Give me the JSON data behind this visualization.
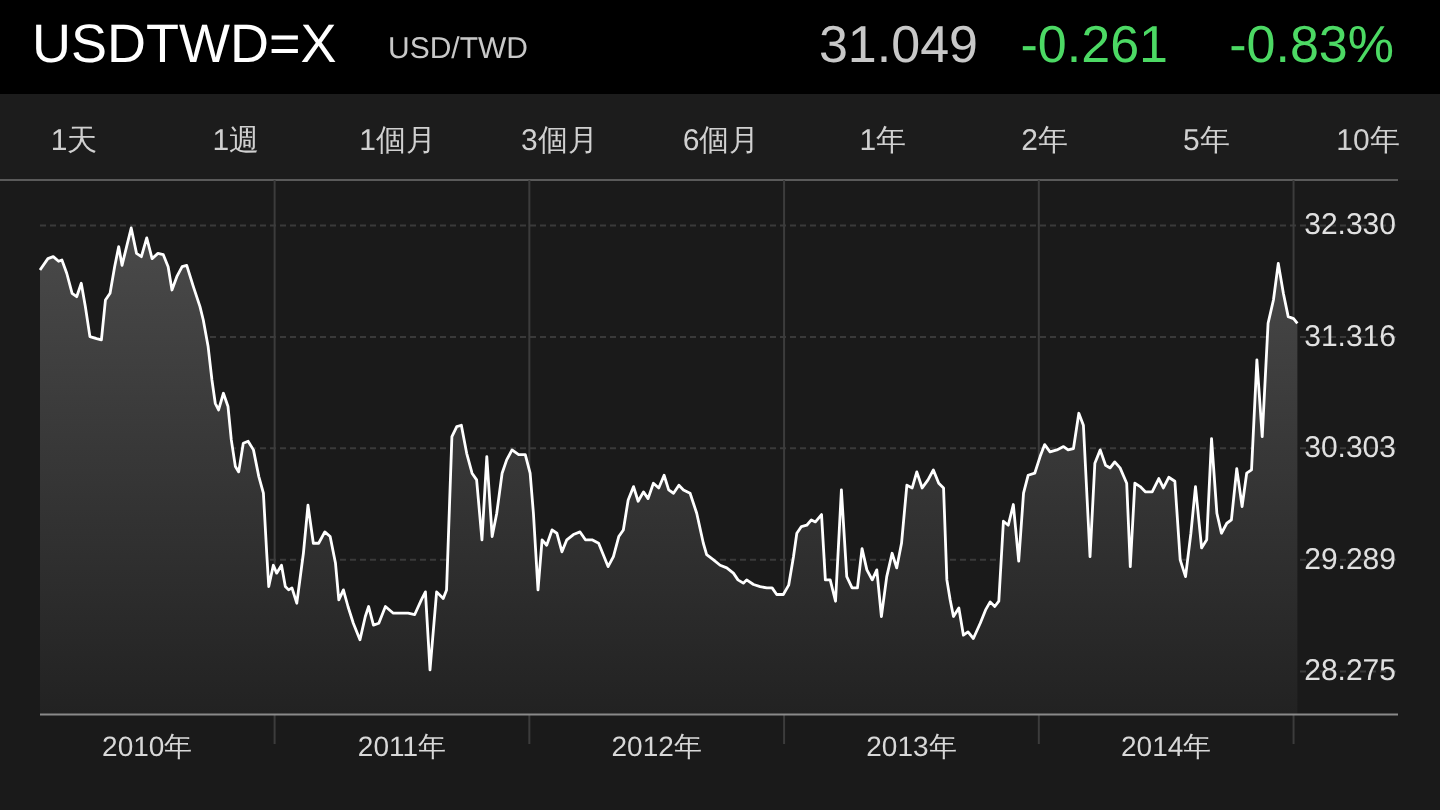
{
  "chart_data": {
    "type": "area",
    "title": "USDTWD=X",
    "subtitle": "USD/TWD",
    "annotations": [
      "31.049",
      "-0.261",
      "-0.83%",
      "1天",
      "1週",
      "1個月",
      "3個月",
      "6個月",
      "1年",
      "2年",
      "5年",
      "10年"
    ],
    "x": [
      2010.079,
      2010.11,
      2010.131,
      2010.152,
      2010.165,
      2010.184,
      2010.205,
      2010.223,
      2010.241,
      2010.257,
      2010.275,
      2010.301,
      2010.32,
      2010.336,
      2010.354,
      2010.372,
      2010.388,
      2010.401,
      2010.419,
      2010.437,
      2010.458,
      2010.477,
      2010.498,
      2010.519,
      2010.542,
      2010.563,
      2010.582,
      2010.597,
      2010.616,
      2010.637,
      2010.655,
      2010.681,
      2010.707,
      2010.72,
      2010.739,
      2010.754,
      2010.767,
      2010.78,
      2010.799,
      2010.817,
      2010.83,
      2010.846,
      2010.859,
      2010.877,
      2010.896,
      2010.917,
      2010.938,
      2010.956,
      2010.969,
      2010.977,
      2010.995,
      2011.008,
      2011.027,
      2011.042,
      2011.055,
      2011.068,
      2011.087,
      2011.113,
      2011.131,
      2011.152,
      2011.173,
      2011.197,
      2011.218,
      2011.239,
      2011.252,
      2011.27,
      2011.288,
      2011.309,
      2011.335,
      2011.356,
      2011.369,
      2011.388,
      2011.409,
      2011.435,
      2011.466,
      2011.492,
      2011.524,
      2011.55,
      2011.576,
      2011.592,
      2011.61,
      2011.636,
      2011.662,
      2011.675,
      2011.696,
      2011.715,
      2011.733,
      2011.754,
      2011.775,
      2011.793,
      2011.814,
      2011.833,
      2011.854,
      2011.872,
      2011.893,
      2011.911,
      2011.932,
      2011.958,
      2011.984,
      2012.003,
      2012.016,
      2012.034,
      2012.05,
      2012.068,
      2012.089,
      2012.108,
      2012.128,
      2012.147,
      2012.173,
      2012.199,
      2012.22,
      2012.246,
      2012.272,
      2012.309,
      2012.33,
      2012.351,
      2012.369,
      2012.388,
      2012.409,
      2012.427,
      2012.448,
      2012.466,
      2012.487,
      2012.508,
      2012.529,
      2012.547,
      2012.566,
      2012.587,
      2012.605,
      2012.631,
      2012.657,
      2012.683,
      2012.696,
      2012.723,
      2012.749,
      2012.775,
      2012.801,
      2012.819,
      2012.84,
      2012.853,
      2012.88,
      2012.906,
      2012.932,
      2012.953,
      2012.971,
      2012.997,
      2013.018,
      2013.037,
      2013.05,
      2013.068,
      2013.089,
      2013.107,
      2013.123,
      2013.147,
      2013.162,
      2013.181,
      2013.202,
      2013.225,
      2013.246,
      2013.267,
      2013.288,
      2013.306,
      2013.325,
      2013.346,
      2013.364,
      2013.382,
      2013.403,
      2013.424,
      2013.442,
      2013.461,
      2013.482,
      2013.503,
      2013.521,
      2013.542,
      2013.565,
      2013.586,
      2013.607,
      2013.626,
      2013.639,
      2013.652,
      2013.665,
      2013.686,
      2013.704,
      2013.722,
      2013.743,
      2013.77,
      2013.791,
      2013.809,
      2013.827,
      2013.843,
      2013.861,
      2013.88,
      2013.9,
      2013.921,
      2013.94,
      2013.958,
      2013.984,
      2014.005,
      2014.023,
      2014.044,
      2014.071,
      2014.097,
      2014.115,
      2014.136,
      2014.157,
      2014.175,
      2014.201,
      2014.22,
      2014.241,
      2014.262,
      2014.28,
      2014.298,
      2014.319,
      2014.345,
      2014.359,
      2014.377,
      2014.398,
      2014.419,
      2014.445,
      2014.471,
      2014.489,
      2014.51,
      2014.534,
      2014.555,
      2014.576,
      2014.597,
      2014.615,
      2014.639,
      2014.659,
      2014.678,
      2014.699,
      2014.717,
      2014.738,
      2014.756,
      2014.777,
      2014.798,
      2014.816,
      2014.835,
      2014.856,
      2014.877,
      2014.9,
      2014.921,
      2014.94,
      2014.96,
      2014.979,
      2015.0,
      2015.015
    ],
    "values": [
      31.925,
      32.028,
      32.046,
      32.004,
      32.016,
      31.895,
      31.713,
      31.682,
      31.804,
      31.592,
      31.319,
      31.301,
      31.289,
      31.652,
      31.713,
      31.955,
      32.137,
      31.967,
      32.137,
      32.307,
      32.076,
      32.046,
      32.216,
      32.028,
      32.076,
      32.064,
      31.955,
      31.743,
      31.864,
      31.955,
      31.967,
      31.773,
      31.592,
      31.47,
      31.228,
      30.925,
      30.713,
      30.652,
      30.804,
      30.683,
      30.38,
      30.137,
      30.089,
      30.349,
      30.367,
      30.289,
      30.046,
      29.895,
      29.349,
      29.046,
      29.24,
      29.168,
      29.24,
      29.046,
      29.016,
      29.034,
      28.895,
      29.349,
      29.786,
      29.44,
      29.44,
      29.543,
      29.501,
      29.258,
      28.925,
      29.016,
      28.865,
      28.713,
      28.562,
      28.774,
      28.865,
      28.695,
      28.713,
      28.865,
      28.804,
      28.804,
      28.804,
      28.792,
      28.925,
      28.998,
      28.289,
      28.998,
      28.937,
      29.016,
      30.41,
      30.501,
      30.513,
      30.258,
      30.077,
      30.016,
      29.471,
      30.228,
      29.501,
      29.713,
      30.077,
      30.198,
      30.289,
      30.246,
      30.246,
      30.077,
      29.713,
      29.016,
      29.471,
      29.422,
      29.561,
      29.531,
      29.362,
      29.471,
      29.519,
      29.543,
      29.471,
      29.471,
      29.44,
      29.228,
      29.319,
      29.501,
      29.561,
      29.834,
      29.955,
      29.822,
      29.907,
      29.846,
      29.986,
      29.943,
      30.058,
      29.925,
      29.895,
      29.968,
      29.925,
      29.895,
      29.713,
      29.44,
      29.337,
      29.289,
      29.24,
      29.216,
      29.168,
      29.107,
      29.077,
      29.107,
      29.065,
      29.046,
      29.034,
      29.034,
      28.974,
      28.974,
      29.059,
      29.319,
      29.531,
      29.592,
      29.604,
      29.652,
      29.634,
      29.701,
      29.107,
      29.107,
      28.913,
      29.925,
      29.137,
      29.034,
      29.034,
      29.392,
      29.198,
      29.107,
      29.198,
      28.774,
      29.137,
      29.349,
      29.216,
      29.44,
      29.968,
      29.943,
      30.089,
      29.943,
      30.016,
      30.107,
      29.986,
      29.943,
      29.107,
      28.925,
      28.774,
      28.852,
      28.604,
      28.634,
      28.574,
      28.713,
      28.834,
      28.907,
      28.865,
      28.913,
      29.64,
      29.604,
      29.792,
      29.277,
      29.895,
      30.058,
      30.077,
      30.228,
      30.337,
      30.271,
      30.289,
      30.319,
      30.289,
      30.301,
      30.622,
      30.513,
      29.319,
      30.167,
      30.289,
      30.149,
      30.125,
      30.18,
      30.125,
      29.986,
      29.228,
      29.986,
      29.955,
      29.907,
      29.907,
      30.028,
      29.943,
      30.04,
      30.004,
      29.289,
      29.137,
      29.531,
      29.955,
      29.398,
      29.471,
      30.392,
      29.713,
      29.531,
      29.622,
      29.652,
      30.119,
      29.774,
      30.077,
      30.107,
      31.107,
      30.41,
      31.44,
      31.652,
      31.985,
      31.713,
      31.501,
      31.483,
      31.44
    ],
    "color": "#ffffff",
    "xlim": [
      2010.079,
      2015.41
    ],
    "ylim": [
      27.882,
      32.743
    ],
    "xticks": [
      {
        "value": 2010.5,
        "label": "2010年"
      },
      {
        "value": 2011,
        "label": null
      },
      {
        "value": 2011.5,
        "label": "2011年"
      },
      {
        "value": 2012,
        "label": null
      },
      {
        "value": 2012.5,
        "label": "2012年"
      },
      {
        "value": 2013,
        "label": null
      },
      {
        "value": 2013.5,
        "label": "2013年"
      },
      {
        "value": 2014,
        "label": null
      },
      {
        "value": 2014.5,
        "label": "2014年"
      },
      {
        "value": 2015,
        "label": null
      }
    ],
    "yticks": [
      28.275,
      29.289,
      30.303,
      31.316,
      {
        "value": 32.33,
        "label": "32.330"
      }
    ],
    "grid": true
  }
}
